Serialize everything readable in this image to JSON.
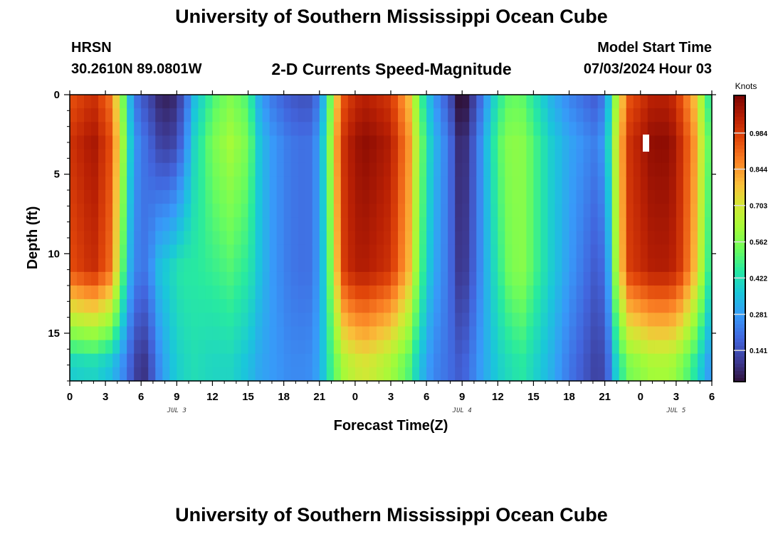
{
  "header": {
    "title": "University of Southern Mississippi Ocean Cube",
    "station": "HRSN",
    "coords": "30.2610N  89.0801W",
    "subtitle": "2-D Currents Speed-Magnitude",
    "model_start_label": "Model Start Time",
    "model_start_value": "07/03/2024 Hour 03"
  },
  "footer": {
    "title": "University of Southern Mississippi Ocean Cube"
  },
  "chart_data": {
    "type": "heatmap",
    "title": "2-D Currents Speed-Magnitude",
    "xlabel": "Forecast Time(Z)",
    "ylabel": "Depth (ft)",
    "x_tick_labels": [
      "0",
      "3",
      "6",
      "9",
      "12",
      "15",
      "18",
      "21",
      "0",
      "3",
      "6",
      "9",
      "12",
      "15",
      "18",
      "21",
      "0",
      "3",
      "6"
    ],
    "x_date_labels": [
      "JUL 3",
      "JUL 4",
      "JUL 5"
    ],
    "x_range_hours": [
      0,
      54
    ],
    "y_ticks": [
      "0",
      "5",
      "10",
      "15"
    ],
    "y_range_ft": [
      0,
      18
    ],
    "y_inverted": true,
    "colorbar": {
      "label": "Knots",
      "ticks": [
        "0.984",
        "0.844",
        "0.703",
        "0.562",
        "0.422",
        "0.281",
        "0.141"
      ],
      "range": [
        0.02,
        1.13
      ]
    },
    "speed_field_keyframes": {
      "hours": [
        0,
        2,
        3.5,
        4.5,
        5.3,
        6,
        6.5,
        7.5,
        8.5,
        9.5,
        10.5,
        12,
        13.5,
        15,
        16,
        17,
        18.5,
        20,
        21,
        21.8,
        22.5,
        23,
        24,
        25,
        27,
        28.5,
        29.5,
        30.5,
        32,
        32.6,
        33,
        33.5,
        34.5,
        36,
        37,
        38,
        39,
        40.5,
        42,
        43.5,
        44.5,
        45.3,
        46,
        47,
        49,
        50.5,
        51.5,
        52.5,
        54
      ],
      "surface_ft3": [
        1.0,
        1.07,
        0.95,
        0.6,
        0.3,
        0.22,
        0.2,
        0.12,
        0.1,
        0.2,
        0.4,
        0.55,
        0.62,
        0.55,
        0.35,
        0.28,
        0.22,
        0.2,
        0.28,
        0.55,
        0.85,
        1.0,
        1.08,
        1.1,
        1.05,
        0.85,
        0.55,
        0.35,
        0.2,
        0.08,
        0.05,
        0.1,
        0.25,
        0.5,
        0.58,
        0.58,
        0.5,
        0.38,
        0.3,
        0.25,
        0.22,
        0.4,
        0.7,
        1.0,
        1.1,
        1.1,
        1.0,
        0.85,
        0.45
      ],
      "mid_ft11": [
        0.95,
        1.02,
        0.9,
        0.5,
        0.25,
        0.22,
        0.22,
        0.35,
        0.4,
        0.45,
        0.45,
        0.47,
        0.5,
        0.45,
        0.35,
        0.28,
        0.22,
        0.2,
        0.28,
        0.5,
        0.8,
        0.98,
        1.05,
        1.05,
        1.0,
        0.8,
        0.5,
        0.32,
        0.2,
        0.1,
        0.08,
        0.12,
        0.25,
        0.45,
        0.55,
        0.58,
        0.5,
        0.38,
        0.28,
        0.2,
        0.15,
        0.3,
        0.65,
        0.98,
        1.05,
        1.05,
        0.98,
        0.8,
        0.4
      ],
      "bottom_ft17": [
        0.38,
        0.4,
        0.35,
        0.25,
        0.15,
        0.07,
        0.1,
        0.25,
        0.35,
        0.4,
        0.42,
        0.4,
        0.4,
        0.35,
        0.3,
        0.28,
        0.25,
        0.25,
        0.3,
        0.45,
        0.55,
        0.62,
        0.68,
        0.7,
        0.62,
        0.5,
        0.35,
        0.25,
        0.2,
        0.17,
        0.17,
        0.2,
        0.28,
        0.38,
        0.42,
        0.45,
        0.4,
        0.32,
        0.22,
        0.15,
        0.1,
        0.2,
        0.4,
        0.55,
        0.62,
        0.62,
        0.55,
        0.45,
        0.25
      ]
    }
  }
}
